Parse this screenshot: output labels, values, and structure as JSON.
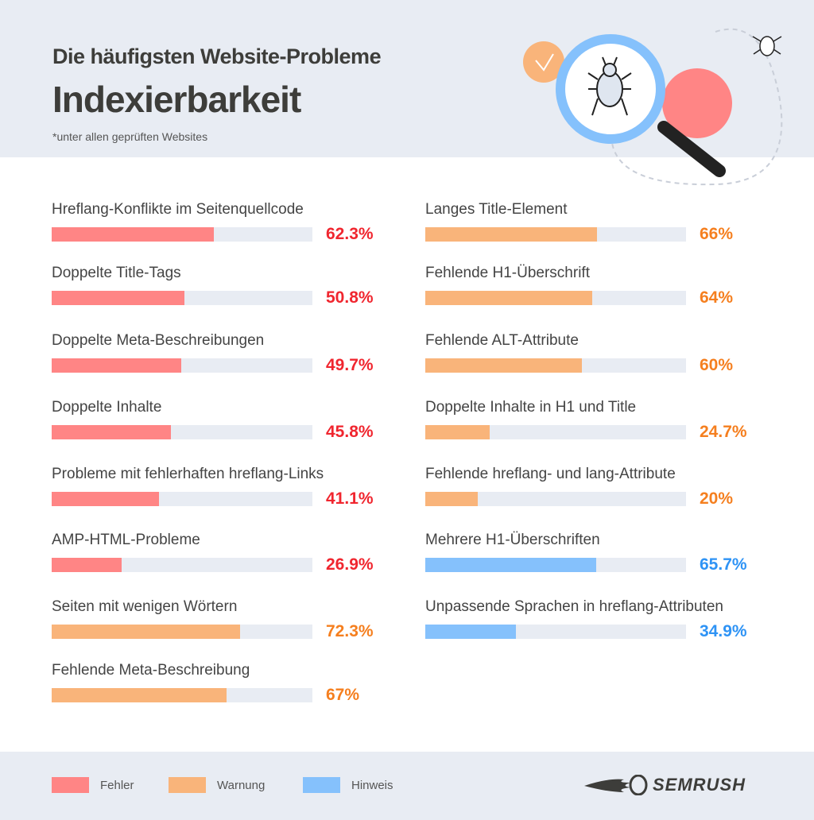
{
  "header": {
    "title": "Die häufigsten Website-Probleme",
    "subtitle": "Indexierbarkeit",
    "note": "*unter allen geprüften Websites"
  },
  "colors": {
    "Fehler": "#ff8585",
    "Warnung": "#f9b47a",
    "Hinweis": "#85c1fc",
    "track": "#e8ecf3",
    "text_Fehler": "#f0262f",
    "text_Warnung": "#f57f1f",
    "text_Hinweis": "#2e93f5"
  },
  "chart_data": {
    "type": "bar",
    "orientation": "horizontal",
    "xlim": [
      0,
      100
    ],
    "unit": "%",
    "columns": [
      [
        {
          "label": "Hreflang-Konflikte im Seitenquellcode",
          "value": 62.3,
          "display": "62.3%",
          "category": "Fehler"
        },
        {
          "label": "Doppelte Title-Tags",
          "value": 50.8,
          "display": "50.8%",
          "category": "Fehler"
        },
        {
          "label": "Doppelte Meta-Beschreibungen",
          "value": 49.7,
          "display": "49.7%",
          "category": "Fehler"
        },
        {
          "label": "Doppelte Inhalte",
          "value": 45.8,
          "display": "45.8%",
          "category": "Fehler"
        },
        {
          "label": "Probleme mit fehlerhaften hreflang-Links",
          "value": 41.1,
          "display": "41.1%",
          "category": "Fehler"
        },
        {
          "label": "AMP-HTML-Probleme",
          "value": 26.9,
          "display": "26.9%",
          "category": "Fehler"
        },
        {
          "label": "Seiten mit wenigen Wörtern",
          "value": 72.3,
          "display": "72.3%",
          "category": "Warnung"
        },
        {
          "label": "Fehlende Meta-Beschreibung",
          "value": 67,
          "display": "67%",
          "category": "Warnung"
        }
      ],
      [
        {
          "label": "Langes Title-Element",
          "value": 66,
          "display": "66%",
          "category": "Warnung"
        },
        {
          "label": "Fehlende H1-Überschrift",
          "value": 64,
          "display": "64%",
          "category": "Warnung"
        },
        {
          "label": "Fehlende ALT-Attribute",
          "value": 60,
          "display": "60%",
          "category": "Warnung"
        },
        {
          "label": "Doppelte Inhalte in H1 und Title",
          "value": 24.7,
          "display": "24.7%",
          "category": "Warnung"
        },
        {
          "label": "Fehlende hreflang- und lang-Attribute",
          "value": 20,
          "display": "20%",
          "category": "Warnung"
        },
        {
          "label": "Mehrere H1-Überschriften",
          "value": 65.7,
          "display": "65.7%",
          "category": "Hinweis"
        },
        {
          "label": "Unpassende Sprachen in hreflang-Attributen",
          "value": 34.9,
          "display": "34.9%",
          "category": "Hinweis"
        }
      ]
    ],
    "legend": [
      "Fehler",
      "Warnung",
      "Hinweis"
    ],
    "legend_placement": "bottom-left"
  },
  "brand": "SEMRUSH"
}
